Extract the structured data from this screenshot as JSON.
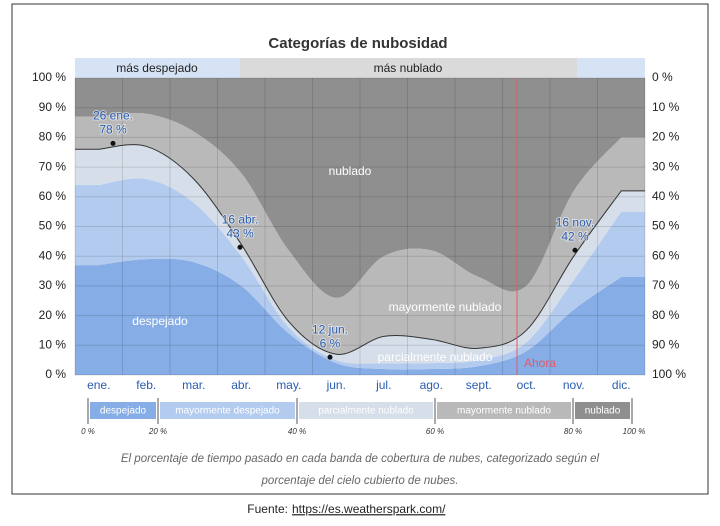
{
  "chart_data": {
    "type": "area",
    "stacked": true,
    "title": "Categorías de nubosidad",
    "categories": [
      "ene.",
      "feb.",
      "mar.",
      "abr.",
      "may.",
      "jun.",
      "jul.",
      "ago.",
      "sept.",
      "oct.",
      "nov.",
      "dic."
    ],
    "series": [
      {
        "name": "despejado",
        "color": "#86ade5",
        "values": [
          37,
          39,
          38,
          30,
          14,
          4,
          2,
          2,
          3,
          8,
          22,
          33
        ]
      },
      {
        "name": "mayormente despejado",
        "color": "#b3cbee",
        "values": [
          27,
          27,
          20,
          10,
          2,
          1,
          2,
          2,
          2,
          3,
          10,
          22
        ]
      },
      {
        "name": "parcialmente nublado",
        "color": "#d5dee9",
        "values": [
          12,
          11,
          8,
          4,
          2,
          2,
          9,
          8,
          4,
          4,
          8,
          7
        ]
      },
      {
        "name": "mayormente nublado",
        "color": "#b9b9b9",
        "values": [
          11,
          11,
          16,
          24,
          24,
          19,
          27,
          30,
          24,
          15,
          22,
          18
        ]
      },
      {
        "name": "nublado",
        "color": "#8f8f8f",
        "values": [
          13,
          12,
          18,
          32,
          58,
          74,
          60,
          58,
          67,
          70,
          38,
          20
        ]
      }
    ],
    "ylim": [
      0,
      100
    ],
    "yticks": [
      {
        "value": 0,
        "label": "0 %"
      },
      {
        "value": 10,
        "label": "10 %"
      },
      {
        "value": 20,
        "label": "20 %"
      },
      {
        "value": 30,
        "label": "30 %"
      },
      {
        "value": 40,
        "label": "40 %"
      },
      {
        "value": 50,
        "label": "50 %"
      },
      {
        "value": 60,
        "label": "60 %"
      },
      {
        "value": 70,
        "label": "70 %"
      },
      {
        "value": 80,
        "label": "80 %"
      },
      {
        "value": 90,
        "label": "90 %"
      },
      {
        "value": 100,
        "label": "100 %"
      }
    ],
    "y2lim": [
      100,
      0
    ],
    "y2ticks": [
      {
        "value": 0,
        "label": "0 %"
      },
      {
        "value": 10,
        "label": "10 %"
      },
      {
        "value": 20,
        "label": "20 %"
      },
      {
        "value": 30,
        "label": "30 %"
      },
      {
        "value": 40,
        "label": "40 %"
      },
      {
        "value": 50,
        "label": "50 %"
      },
      {
        "value": 60,
        "label": "60 %"
      },
      {
        "value": 70,
        "label": "70 %"
      },
      {
        "value": 80,
        "label": "80 %"
      },
      {
        "value": 90,
        "label": "90 %"
      },
      {
        "value": 100,
        "label": "100 %"
      }
    ],
    "grid": true,
    "top_bands": [
      "más despejado",
      "más nublado"
    ],
    "annotations": [
      {
        "text": "26 ene.",
        "value": 78,
        "value_label": "78 %"
      },
      {
        "text": "16 abr.",
        "value": 43,
        "value_label": "43 %"
      },
      {
        "text": "12 jun.",
        "value": 6,
        "value_label": "6 %"
      },
      {
        "text": "16 nov.",
        "value": 42,
        "value_label": "42 %"
      }
    ],
    "now_label": "Ahora",
    "legend_ticks": [
      {
        "value": 0,
        "label": "0 %"
      },
      {
        "value": 20,
        "label": "20 %"
      },
      {
        "value": 40,
        "label": "40 %"
      },
      {
        "value": 60,
        "label": "60 %"
      },
      {
        "value": 80,
        "label": "80 %"
      },
      {
        "value": 100,
        "label": "100 %"
      }
    ]
  },
  "caption": [
    "El porcentaje de tiempo pasado en cada banda de cobertura de nubes, categorizado según el",
    "porcentaje del cielo cubierto de nubes."
  ],
  "source": {
    "label": "Fuente:",
    "url": "https://es.weatherspark.com/"
  }
}
